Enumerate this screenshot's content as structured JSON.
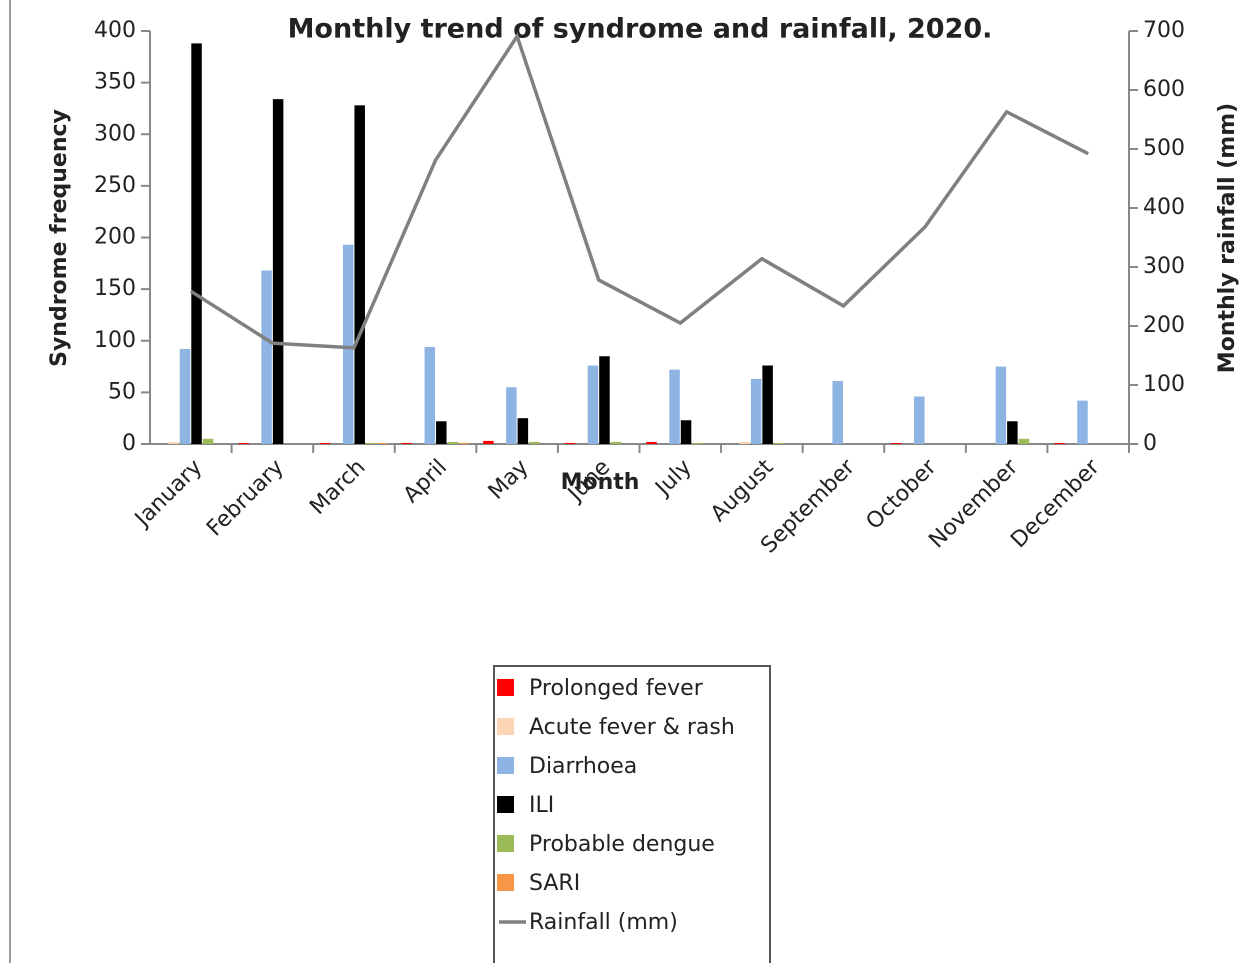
{
  "chart_data": {
    "type": "bar",
    "title": "Monthly trend of syndrome and rainfall, 2020.",
    "x_label": "Month",
    "y_label": "Syndrome frequency",
    "y2_label": "Monthly rainfall (mm)",
    "categories": [
      "January",
      "February",
      "March",
      "April",
      "May",
      "June",
      "July",
      "August",
      "September",
      "October",
      "November",
      "December"
    ],
    "series": [
      {
        "name": "Prolonged fever",
        "color": "#ff0000",
        "values": [
          0,
          1,
          1,
          1,
          3,
          1,
          2,
          0,
          0,
          1,
          0,
          1
        ]
      },
      {
        "name": "Acute fever & rash",
        "color": "#fcd5b5",
        "values": [
          2,
          0,
          0,
          0,
          0,
          0,
          0,
          2,
          0,
          0,
          0,
          0
        ]
      },
      {
        "name": "Diarrhoea",
        "color": "#8db4e2",
        "values": [
          92,
          168,
          193,
          94,
          55,
          76,
          72,
          63,
          61,
          46,
          75,
          42
        ]
      },
      {
        "name": "ILI",
        "color": "#000000",
        "values": [
          388,
          334,
          328,
          22,
          25,
          85,
          23,
          76,
          0,
          0,
          22,
          0
        ]
      },
      {
        "name": "Probable dengue",
        "color": "#9bbb59",
        "values": [
          5,
          0,
          1,
          2,
          2,
          2,
          1,
          1,
          0,
          0,
          5,
          0
        ]
      },
      {
        "name": "SARI",
        "color": "#f79646",
        "values": [
          0,
          0,
          1,
          1,
          0,
          0,
          0,
          0,
          0,
          0,
          0,
          0
        ]
      },
      {
        "name": "Rainfall (mm)",
        "color": "#808080",
        "type": "line",
        "axis": "y2",
        "values": [
          259,
          171,
          163,
          481,
          691,
          278,
          205,
          314,
          234,
          368,
          563,
          492
        ]
      }
    ],
    "ylim": [
      0,
      400
    ],
    "yticks": [
      0,
      50,
      100,
      150,
      200,
      250,
      300,
      350,
      400
    ],
    "y2lim": [
      0,
      700
    ],
    "y2ticks": [
      0,
      100,
      200,
      300,
      400,
      500,
      600,
      700
    ],
    "grid": false,
    "legend": "bottom"
  }
}
